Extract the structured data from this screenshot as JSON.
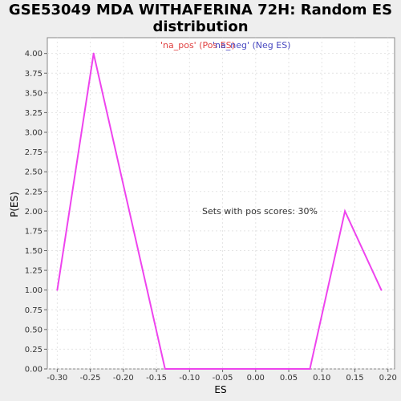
{
  "chart_data": {
    "type": "line",
    "title_line1": "GSE53049 MDA WITHAFERINA 72H: Random ES",
    "title_line2": "distribution",
    "xlabel": "ES",
    "ylabel": "P(ES)",
    "xlim": [
      -0.315,
      0.21
    ],
    "ylim": [
      0,
      4.2
    ],
    "x_ticks": [
      "-0.30",
      "-0.25",
      "-0.20",
      "-0.15",
      "-0.10",
      "-0.05",
      "0.00",
      "0.05",
      "0.10",
      "0.15",
      "0.20"
    ],
    "x_tick_values": [
      -0.3,
      -0.25,
      -0.2,
      -0.15,
      -0.1,
      -0.05,
      0.0,
      0.05,
      0.1,
      0.15,
      0.2
    ],
    "y_ticks": [
      "0.00",
      "0.25",
      "0.50",
      "0.75",
      "1.00",
      "1.25",
      "1.50",
      "1.75",
      "2.00",
      "2.25",
      "2.50",
      "2.75",
      "3.00",
      "3.25",
      "3.50",
      "3.75",
      "4.00"
    ],
    "y_tick_values": [
      0,
      0.25,
      0.5,
      0.75,
      1.0,
      1.25,
      1.5,
      1.75,
      2.0,
      2.25,
      2.5,
      2.75,
      3.0,
      3.25,
      3.5,
      3.75,
      4.0
    ],
    "grid": true,
    "legend": {
      "placement": "top-center",
      "entries": [
        {
          "label": "'na_pos' (Pos ES)",
          "color": "#e04040"
        },
        {
          "label": "'na_neg' (Neg ES)",
          "color": "#4848c0"
        }
      ]
    },
    "annotation": "Sets with pos scores: 30%",
    "series": [
      {
        "color": "#ee44ee",
        "x": [
          -0.3,
          -0.245,
          -0.137,
          0.082,
          0.135,
          0.19
        ],
        "y": [
          1.0,
          4.0,
          0.0,
          0.0,
          2.0,
          1.0
        ]
      }
    ]
  }
}
